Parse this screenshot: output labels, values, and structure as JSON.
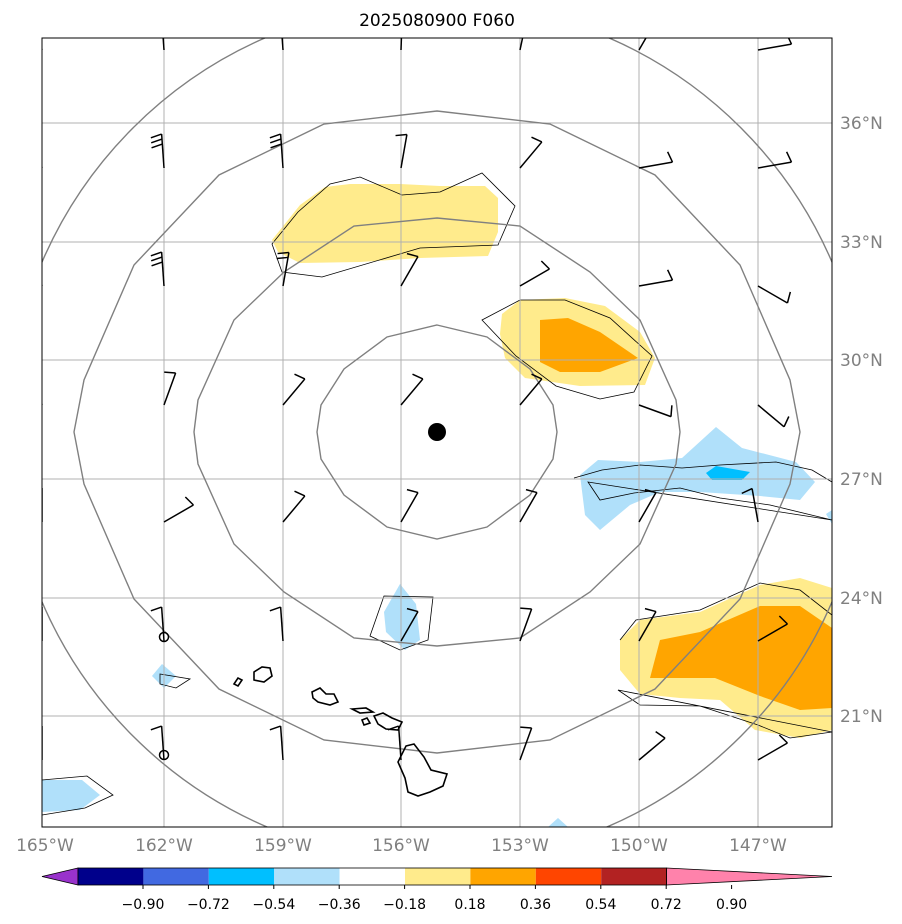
{
  "title": "2025080900 F060",
  "lat_labels": [
    "36°N",
    "33°N",
    "30°N",
    "27°N",
    "24°N",
    "21°N"
  ],
  "lon_labels": [
    "165°W",
    "162°W",
    "159°W",
    "156°W",
    "153°W",
    "150°W",
    "147°W"
  ],
  "colorbar": {
    "ticks": [
      "−0.90",
      "−0.72",
      "−0.54",
      "−0.36",
      "−0.18",
      "0.18",
      "0.36",
      "0.54",
      "0.72",
      "0.90"
    ],
    "colors": [
      "#9932cc",
      "#00008b",
      "#4169e1",
      "#00bfff",
      "#b0e0fa",
      "#ffffff",
      "#ffeb8c",
      "#ffa500",
      "#ff4500",
      "#b22222",
      "#ff82ab"
    ]
  },
  "map": {
    "lon_range": [
      -165,
      -145.2
    ],
    "lat_range": [
      18.2,
      38.0
    ],
    "storm_center": {
      "lon": -155.8,
      "lat": 28.2
    },
    "range_rings_deg": [
      3,
      6,
      9,
      12
    ],
    "colors": {
      "gridline": "#b0b0b0",
      "ring": "#808080",
      "positive_light": "#ffeb8c",
      "positive_strong": "#ffa500",
      "negative_light": "#b0e0fa",
      "negative_strong": "#00bfff"
    }
  }
}
